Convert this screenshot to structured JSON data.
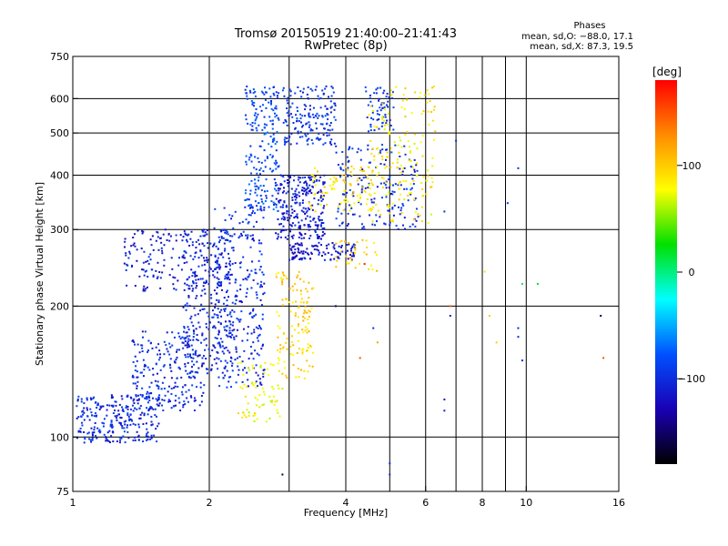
{
  "chart_data": {
    "type": "scatter",
    "title": "Tromsø 20150519 21:40:00–21:41:43",
    "subtitle": "RwPretec (8p)",
    "xlabel": "Frequency [MHz]",
    "ylabel": "Stationary phase Virtual Height [km]",
    "x_scale": "log",
    "y_scale": "log",
    "xlim": [
      1,
      16
    ],
    "ylim": [
      75,
      750
    ],
    "x_ticks": [
      1,
      2,
      4,
      6,
      8,
      10,
      16
    ],
    "x_grid": [
      2,
      3,
      4,
      5,
      6,
      7,
      8,
      9,
      10
    ],
    "y_ticks": [
      75,
      100,
      200,
      300,
      400,
      500,
      600,
      750
    ],
    "y_grid": [
      100,
      200,
      300,
      400,
      500,
      600
    ],
    "grid": true,
    "phases": {
      "title": "Phases",
      "line_o": "mean, sd,O: −88.0, 17.1",
      "line_x": "mean, sd,X:  87.3, 19.5"
    },
    "colorbar": {
      "label": "[deg]",
      "range": [
        -180,
        180
      ],
      "ticks": [
        100,
        0,
        -100
      ],
      "colors": [
        "#ff0000",
        "#ff8c00",
        "#ffff00",
        "#00e000",
        "#00ffff",
        "#0050ff",
        "#1a00b4",
        "#000000"
      ]
    },
    "series": [
      {
        "mode": "O",
        "mean_phase": -88.0,
        "regions": [
          {
            "fmin": 1.02,
            "fmax": 1.55,
            "hmin": 97,
            "hmax": 125,
            "n": 260,
            "phase": -100
          },
          {
            "fmin": 1.35,
            "fmax": 1.95,
            "hmin": 115,
            "hmax": 175,
            "n": 240,
            "phase": -100
          },
          {
            "fmin": 1.75,
            "fmax": 2.25,
            "hmin": 140,
            "hmax": 300,
            "n": 240,
            "phase": -105
          },
          {
            "fmin": 1.3,
            "fmax": 2.0,
            "hmin": 215,
            "hmax": 300,
            "n": 150,
            "phase": -110
          },
          {
            "fmin": 2.05,
            "fmax": 2.65,
            "hmin": 130,
            "hmax": 340,
            "n": 320,
            "phase": -100
          },
          {
            "fmin": 2.4,
            "fmax": 2.85,
            "hmin": 330,
            "hmax": 640,
            "n": 200,
            "phase": -85
          },
          {
            "fmin": 2.8,
            "fmax": 3.6,
            "hmin": 285,
            "hmax": 400,
            "n": 260,
            "phase": -110
          },
          {
            "fmin": 2.9,
            "fmax": 3.8,
            "hmin": 470,
            "hmax": 640,
            "n": 170,
            "phase": -95
          },
          {
            "fmin": 3.0,
            "fmax": 4.2,
            "hmin": 255,
            "hmax": 280,
            "n": 110,
            "phase": -115
          },
          {
            "fmin": 3.8,
            "fmax": 5.8,
            "hmin": 300,
            "hmax": 470,
            "n": 170,
            "phase": -100
          },
          {
            "fmin": 4.4,
            "fmax": 5.1,
            "hmin": 500,
            "hmax": 640,
            "n": 60,
            "phase": -95
          }
        ]
      },
      {
        "mode": "X",
        "mean_phase": 87.3,
        "regions": [
          {
            "fmin": 2.3,
            "fmax": 2.9,
            "hmin": 108,
            "hmax": 150,
            "n": 70,
            "phase": 80
          },
          {
            "fmin": 2.8,
            "fmax": 3.4,
            "hmin": 135,
            "hmax": 240,
            "n": 130,
            "phase": 95
          },
          {
            "fmin": 3.3,
            "fmax": 4.6,
            "hmin": 330,
            "hmax": 420,
            "n": 90,
            "phase": 90
          },
          {
            "fmin": 4.5,
            "fmax": 6.3,
            "hmin": 310,
            "hmax": 640,
            "n": 170,
            "phase": 85
          },
          {
            "fmin": 3.8,
            "fmax": 4.7,
            "hmin": 240,
            "hmax": 285,
            "n": 35,
            "phase": 95
          }
        ]
      }
    ],
    "scattered_points": [
      {
        "f": 6.6,
        "h": 330,
        "phase": -100
      },
      {
        "f": 6.8,
        "h": 200,
        "phase": 150
      },
      {
        "f": 6.8,
        "h": 190,
        "phase": -110
      },
      {
        "f": 6.6,
        "h": 122,
        "phase": -110
      },
      {
        "f": 6.6,
        "h": 115,
        "phase": -110
      },
      {
        "f": 7.0,
        "h": 480,
        "phase": -100
      },
      {
        "f": 8.1,
        "h": 240,
        "phase": 90
      },
      {
        "f": 8.3,
        "h": 190,
        "phase": 100
      },
      {
        "f": 8.6,
        "h": 165,
        "phase": 100
      },
      {
        "f": 9.1,
        "h": 345,
        "phase": -90
      },
      {
        "f": 9.6,
        "h": 415,
        "phase": -100
      },
      {
        "f": 9.8,
        "h": 225,
        "phase": 10
      },
      {
        "f": 9.6,
        "h": 178,
        "phase": -100
      },
      {
        "f": 9.6,
        "h": 170,
        "phase": -100
      },
      {
        "f": 9.8,
        "h": 150,
        "phase": -100
      },
      {
        "f": 10.6,
        "h": 225,
        "phase": 20
      },
      {
        "f": 14.6,
        "h": 190,
        "phase": -160
      },
      {
        "f": 14.8,
        "h": 152,
        "phase": 150
      },
      {
        "f": 4.4,
        "h": 250,
        "phase": 170
      },
      {
        "f": 4.6,
        "h": 178,
        "phase": -100
      },
      {
        "f": 4.3,
        "h": 152,
        "phase": 150
      },
      {
        "f": 5.0,
        "h": 87,
        "phase": -100
      },
      {
        "f": 5.0,
        "h": 82,
        "phase": -100
      },
      {
        "f": 2.9,
        "h": 82,
        "phase": -160
      },
      {
        "f": 4.7,
        "h": 165,
        "phase": 120
      },
      {
        "f": 3.8,
        "h": 200,
        "phase": -150
      }
    ]
  }
}
